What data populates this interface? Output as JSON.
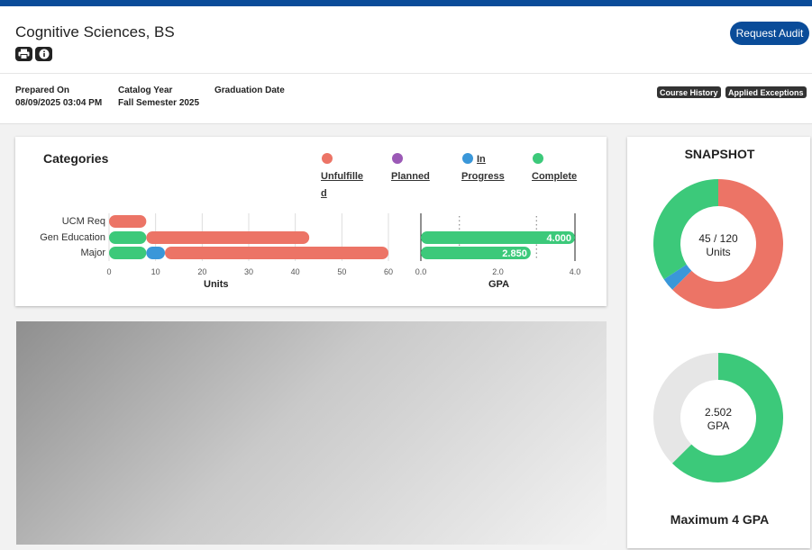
{
  "header": {
    "title": "Cognitive Sciences, BS",
    "request_audit_label": "Request Audit",
    "print_icon": "printer-icon",
    "info_icon": "info-icon",
    "prepared_on_label": "Prepared On",
    "prepared_on_value": "08/09/2025 03:04 PM",
    "catalog_year_label": "Catalog Year",
    "catalog_year_value": "Fall Semester 2025",
    "graduation_date_label": "Graduation Date",
    "course_history_label": "Course History",
    "applied_exceptions_label": "Applied Exceptions",
    "accent_color": "#0a4c99"
  },
  "categories": {
    "title": "Categories",
    "legend": [
      {
        "label": "Unfulfilled",
        "color": "#ec7466"
      },
      {
        "label": "Planned",
        "color": "#9b59b6"
      },
      {
        "label": "In Progress",
        "color": "#3a97d9"
      },
      {
        "label": "Complete",
        "color": "#3cc97a"
      }
    ],
    "units_axis_title": "Units",
    "gpa_axis_title": "GPA"
  },
  "chart_data": [
    {
      "type": "bar",
      "stacked": true,
      "orientation": "horizontal",
      "categories": [
        "UCM Req",
        "Gen Education",
        "Major"
      ],
      "series": [
        {
          "name": "Complete",
          "values": [
            0,
            8,
            8
          ],
          "color": "#3cc97a"
        },
        {
          "name": "In Progress",
          "values": [
            0,
            0,
            4
          ],
          "color": "#3a97d9"
        },
        {
          "name": "Unfulfilled",
          "values": [
            8,
            35,
            48
          ],
          "color": "#ec7466"
        }
      ],
      "xlabel": "Units",
      "xlim": [
        0,
        60
      ],
      "xticks": [
        0,
        10,
        20,
        30,
        40,
        50,
        60
      ],
      "grid": true
    },
    {
      "type": "bar",
      "orientation": "horizontal",
      "categories": [
        "UCM Req",
        "Gen Education",
        "Major"
      ],
      "series": [
        {
          "name": "GPA",
          "values": [
            null,
            4.0,
            2.85
          ],
          "labels": [
            "",
            "4.000",
            "2.850"
          ],
          "color": "#3cc97a"
        }
      ],
      "xlabel": "GPA",
      "xlim": [
        0,
        4
      ],
      "xticks": [
        "0.0",
        "2.0",
        "4.0"
      ]
    }
  ],
  "snapshot": {
    "title": "SNAPSHOT",
    "units": {
      "text_line1": "45 / 120",
      "text_line2": "Units",
      "complete": 41,
      "in_progress": 4,
      "total": 120
    },
    "gpa": {
      "text_line1": "2.502",
      "text_line2": "GPA",
      "value": 2.502,
      "max": 4
    },
    "max_gpa_label": "Maximum 4 GPA",
    "colors": {
      "complete": "#3cc97a",
      "in_progress": "#3a97d9",
      "unfulfilled": "#ec7466",
      "remaining_gpa": "#e6e6e6"
    }
  }
}
